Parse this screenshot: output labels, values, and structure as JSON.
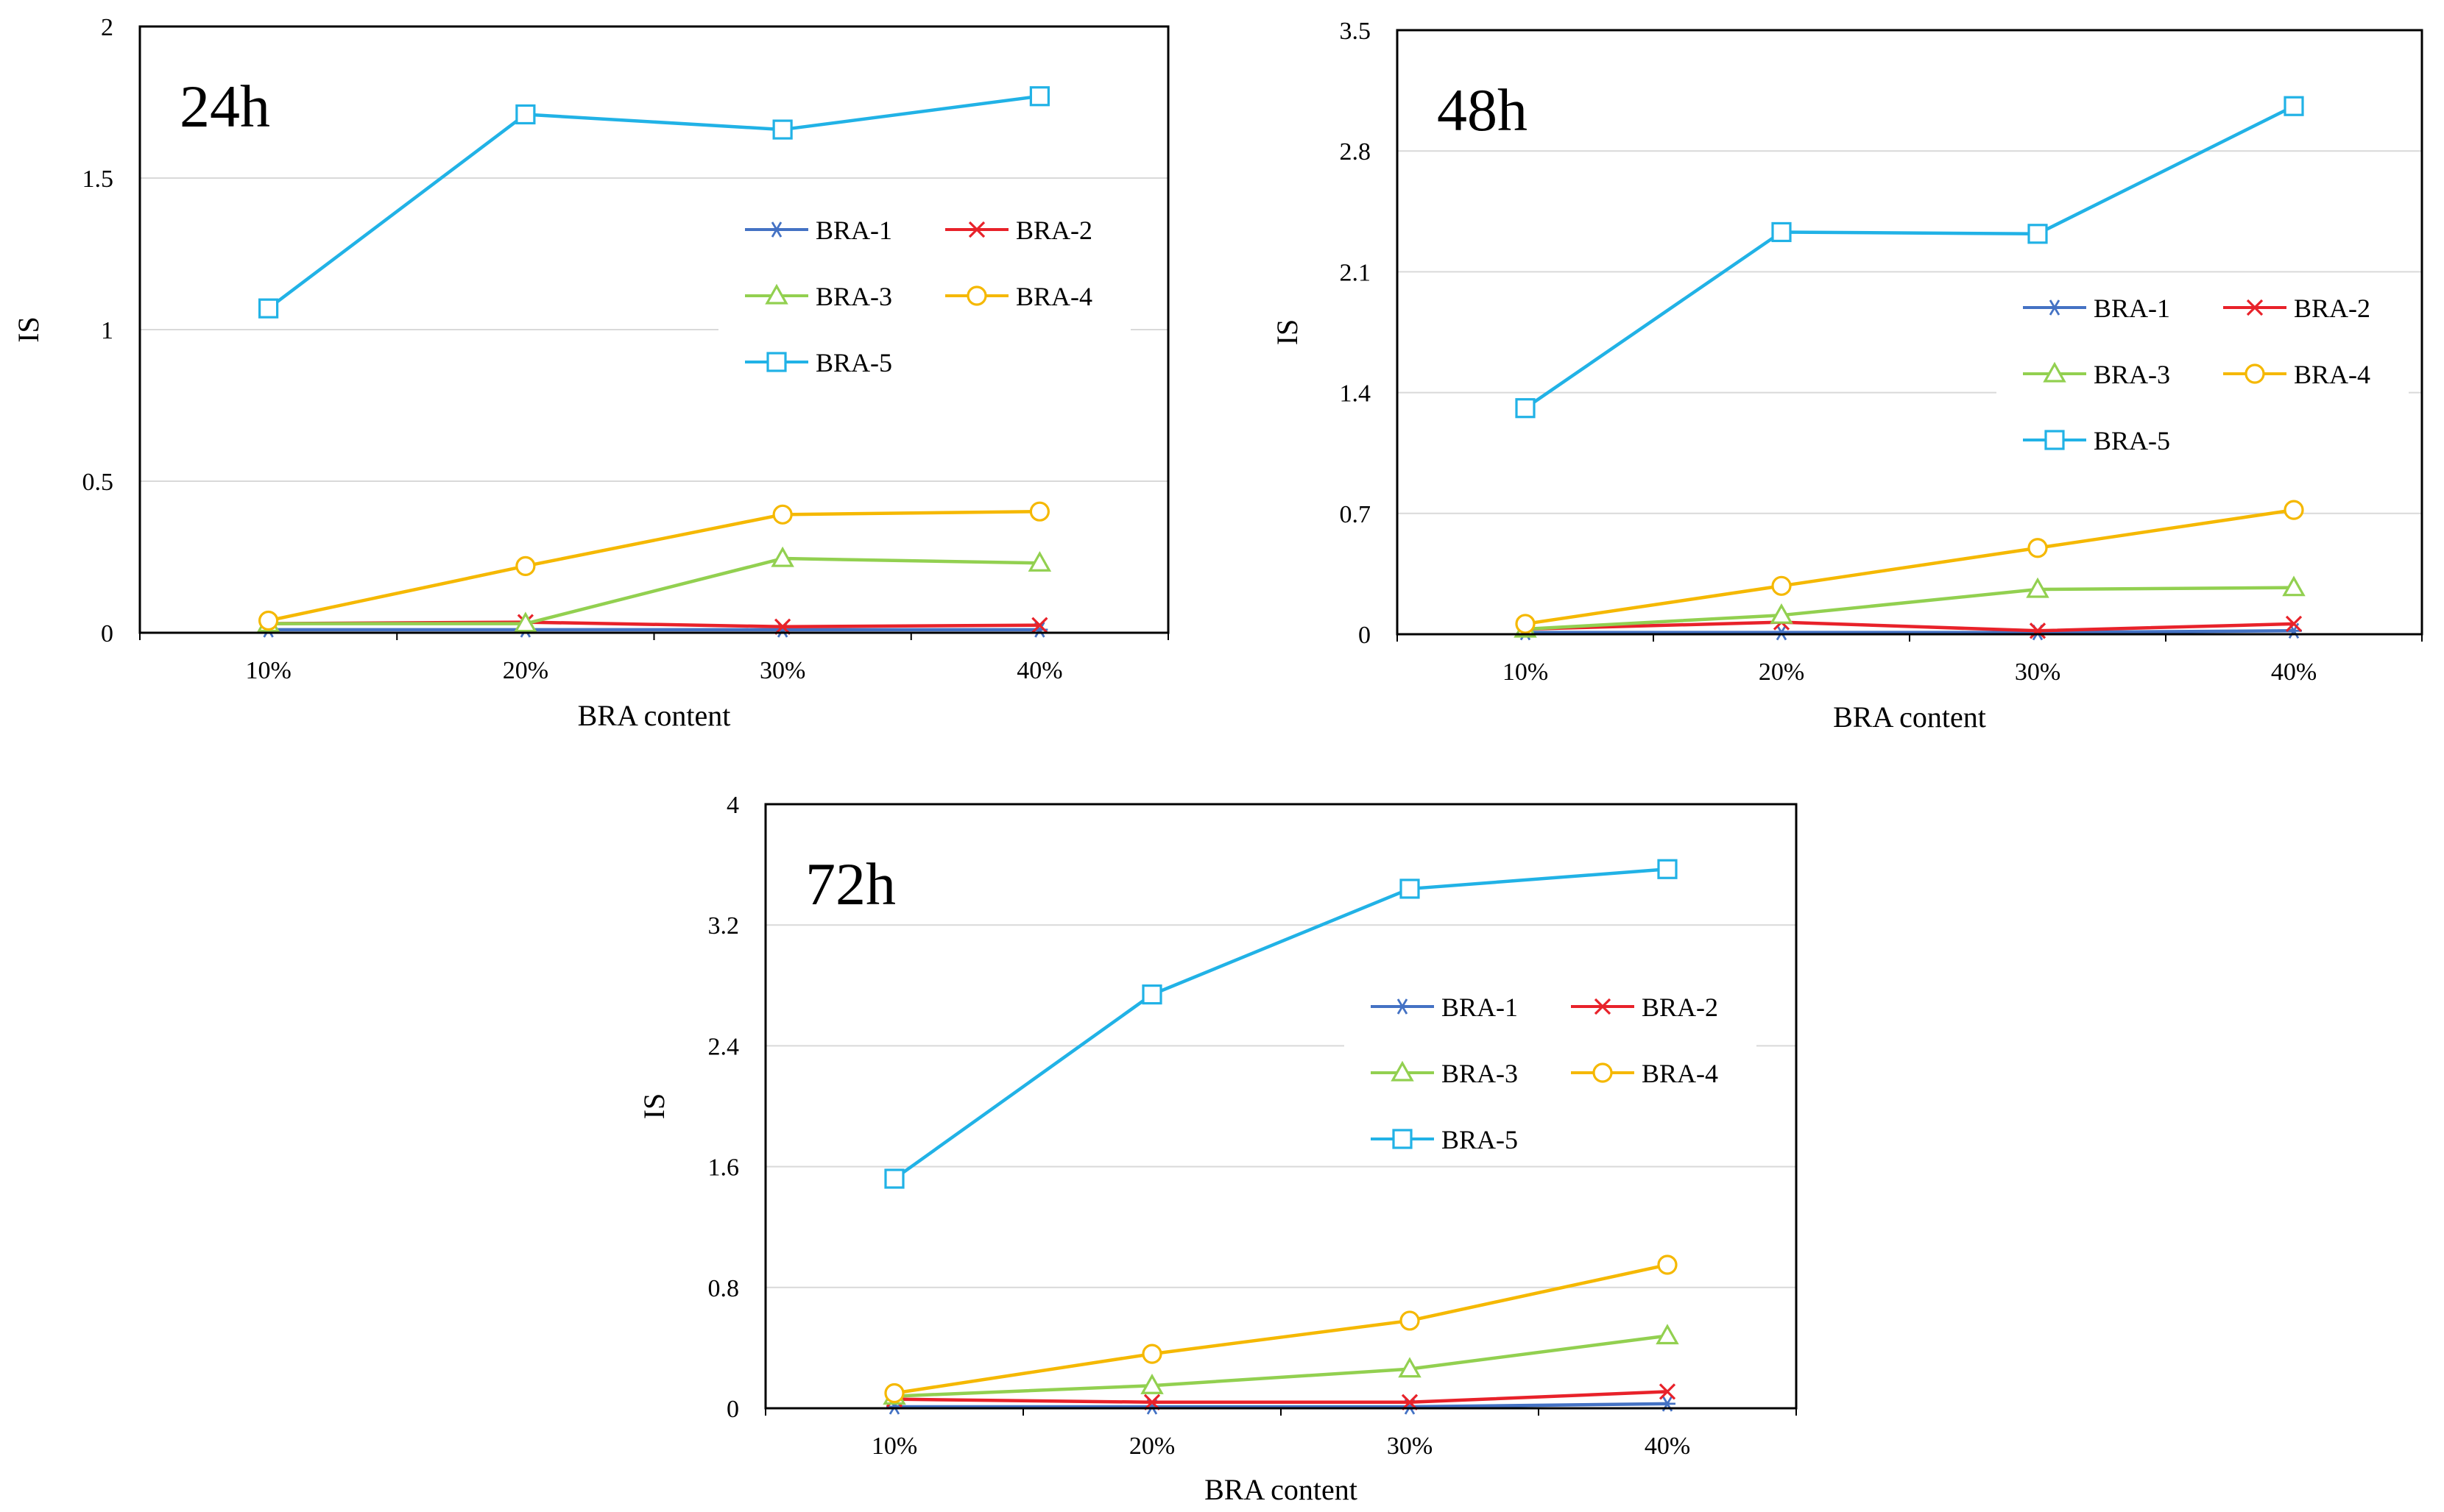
{
  "figure": {
    "series_styles": [
      {
        "name": "BRA-1",
        "color": "#4472C4",
        "marker": "asterisk"
      },
      {
        "name": "BRA-2",
        "color": "#E8222A",
        "marker": "x"
      },
      {
        "name": "BRA-3",
        "color": "#92D050",
        "marker": "triangle"
      },
      {
        "name": "BRA-4",
        "color": "#F5B800",
        "marker": "circle"
      },
      {
        "name": "BRA-5",
        "color": "#21B2E6",
        "marker": "square"
      }
    ]
  },
  "chart_data": [
    {
      "type": "line",
      "panel_label": "24h",
      "title": "",
      "xlabel": "BRA content",
      "ylabel": "IS",
      "categories": [
        "10%",
        "20%",
        "30%",
        "40%"
      ],
      "ylim": [
        0,
        2
      ],
      "yticks": [
        "0",
        "0.5",
        "1",
        "1.5",
        "2"
      ],
      "ytick_values": [
        0,
        0.5,
        1,
        1.5,
        2
      ],
      "grid": true,
      "legend": "center-right",
      "series": [
        {
          "name": "BRA-1",
          "values": [
            0.01,
            0.01,
            0.01,
            0.01
          ]
        },
        {
          "name": "BRA-2",
          "values": [
            0.03,
            0.035,
            0.02,
            0.025
          ]
        },
        {
          "name": "BRA-3",
          "values": [
            0.03,
            0.03,
            0.245,
            0.23
          ]
        },
        {
          "name": "BRA-4",
          "values": [
            0.04,
            0.22,
            0.39,
            0.4
          ]
        },
        {
          "name": "BRA-5",
          "values": [
            1.07,
            1.71,
            1.66,
            1.77
          ]
        }
      ]
    },
    {
      "type": "line",
      "panel_label": "48h",
      "title": "",
      "xlabel": "BRA content",
      "ylabel": "IS",
      "categories": [
        "10%",
        "20%",
        "30%",
        "40%"
      ],
      "ylim": [
        0,
        3.5
      ],
      "yticks": [
        "0",
        "0.7",
        "1.4",
        "2.1",
        "2.8",
        "3.5"
      ],
      "ytick_values": [
        0,
        0.7,
        1.4,
        2.1,
        2.8,
        3.5
      ],
      "grid": true,
      "legend": "center-right",
      "series": [
        {
          "name": "BRA-1",
          "values": [
            0.01,
            0.01,
            0.01,
            0.02
          ]
        },
        {
          "name": "BRA-2",
          "values": [
            0.03,
            0.07,
            0.02,
            0.06
          ]
        },
        {
          "name": "BRA-3",
          "values": [
            0.03,
            0.11,
            0.26,
            0.27
          ]
        },
        {
          "name": "BRA-4",
          "values": [
            0.06,
            0.28,
            0.5,
            0.72
          ]
        },
        {
          "name": "BRA-5",
          "values": [
            1.31,
            2.33,
            2.32,
            3.06
          ]
        }
      ]
    },
    {
      "type": "line",
      "panel_label": "72h",
      "title": "",
      "xlabel": "BRA content",
      "ylabel": "IS",
      "categories": [
        "10%",
        "20%",
        "30%",
        "40%"
      ],
      "ylim": [
        0,
        4
      ],
      "yticks": [
        "0",
        "0.8",
        "1.6",
        "2.4",
        "3.2",
        "4"
      ],
      "ytick_values": [
        0,
        0.8,
        1.6,
        2.4,
        3.2,
        4
      ],
      "grid": true,
      "legend": "center-right",
      "series": [
        {
          "name": "BRA-1",
          "values": [
            0.01,
            0.01,
            0.01,
            0.03
          ]
        },
        {
          "name": "BRA-2",
          "values": [
            0.06,
            0.04,
            0.04,
            0.11
          ]
        },
        {
          "name": "BRA-3",
          "values": [
            0.08,
            0.15,
            0.26,
            0.48
          ]
        },
        {
          "name": "BRA-4",
          "values": [
            0.1,
            0.36,
            0.58,
            0.95
          ]
        },
        {
          "name": "BRA-5",
          "values": [
            1.52,
            2.74,
            3.44,
            3.57
          ]
        }
      ]
    }
  ]
}
